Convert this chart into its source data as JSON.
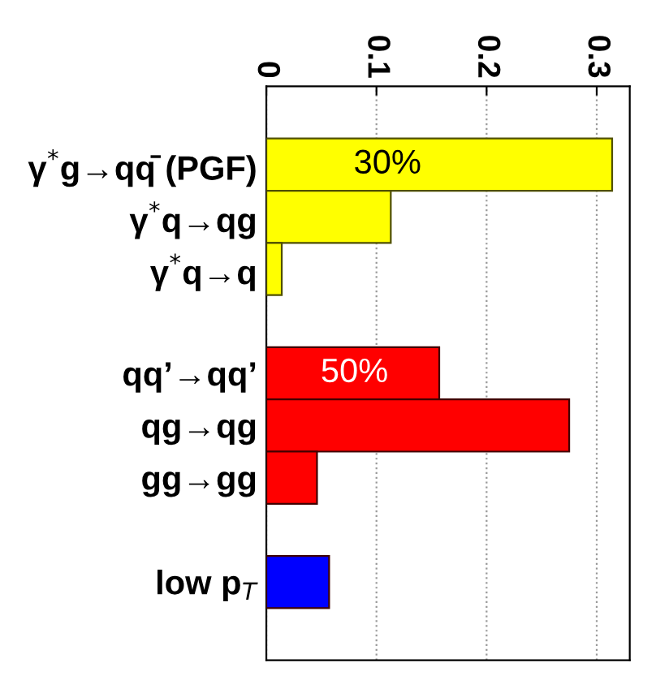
{
  "chart_data": {
    "type": "bar",
    "orientation": "horizontal",
    "categories": [
      null,
      "γ$^{*}$g→qq̄ (PGF)",
      "γ$^{*}$q→qg",
      "γ$^{*}$q→q",
      null,
      "qq’→qq’",
      "qg→qg",
      "gg→gg",
      null,
      "low p$_{T}$",
      null
    ],
    "values": [
      null,
      0.314,
      0.113,
      0.014,
      null,
      0.157,
      0.275,
      0.046,
      null,
      0.057,
      null
    ],
    "colors": [
      "#ffff00",
      "#ffff00",
      "#ffff00",
      "#ffff00",
      "#ff0000",
      "#ff0000",
      "#ff0000",
      "#ff0000",
      "#0000ff",
      "#0000ff",
      "#0000ff"
    ],
    "xlim": [
      0,
      0.33
    ],
    "xticks": [
      0,
      0.1,
      0.2,
      0.3
    ],
    "grid": "x",
    "annotations": [
      {
        "text": "30%",
        "x": 0.11,
        "y": "γ$^{*}$g→qq̄ (PGF)"
      },
      {
        "text": "50%",
        "x": 0.08,
        "y": "qq’→qq’"
      }
    ]
  }
}
